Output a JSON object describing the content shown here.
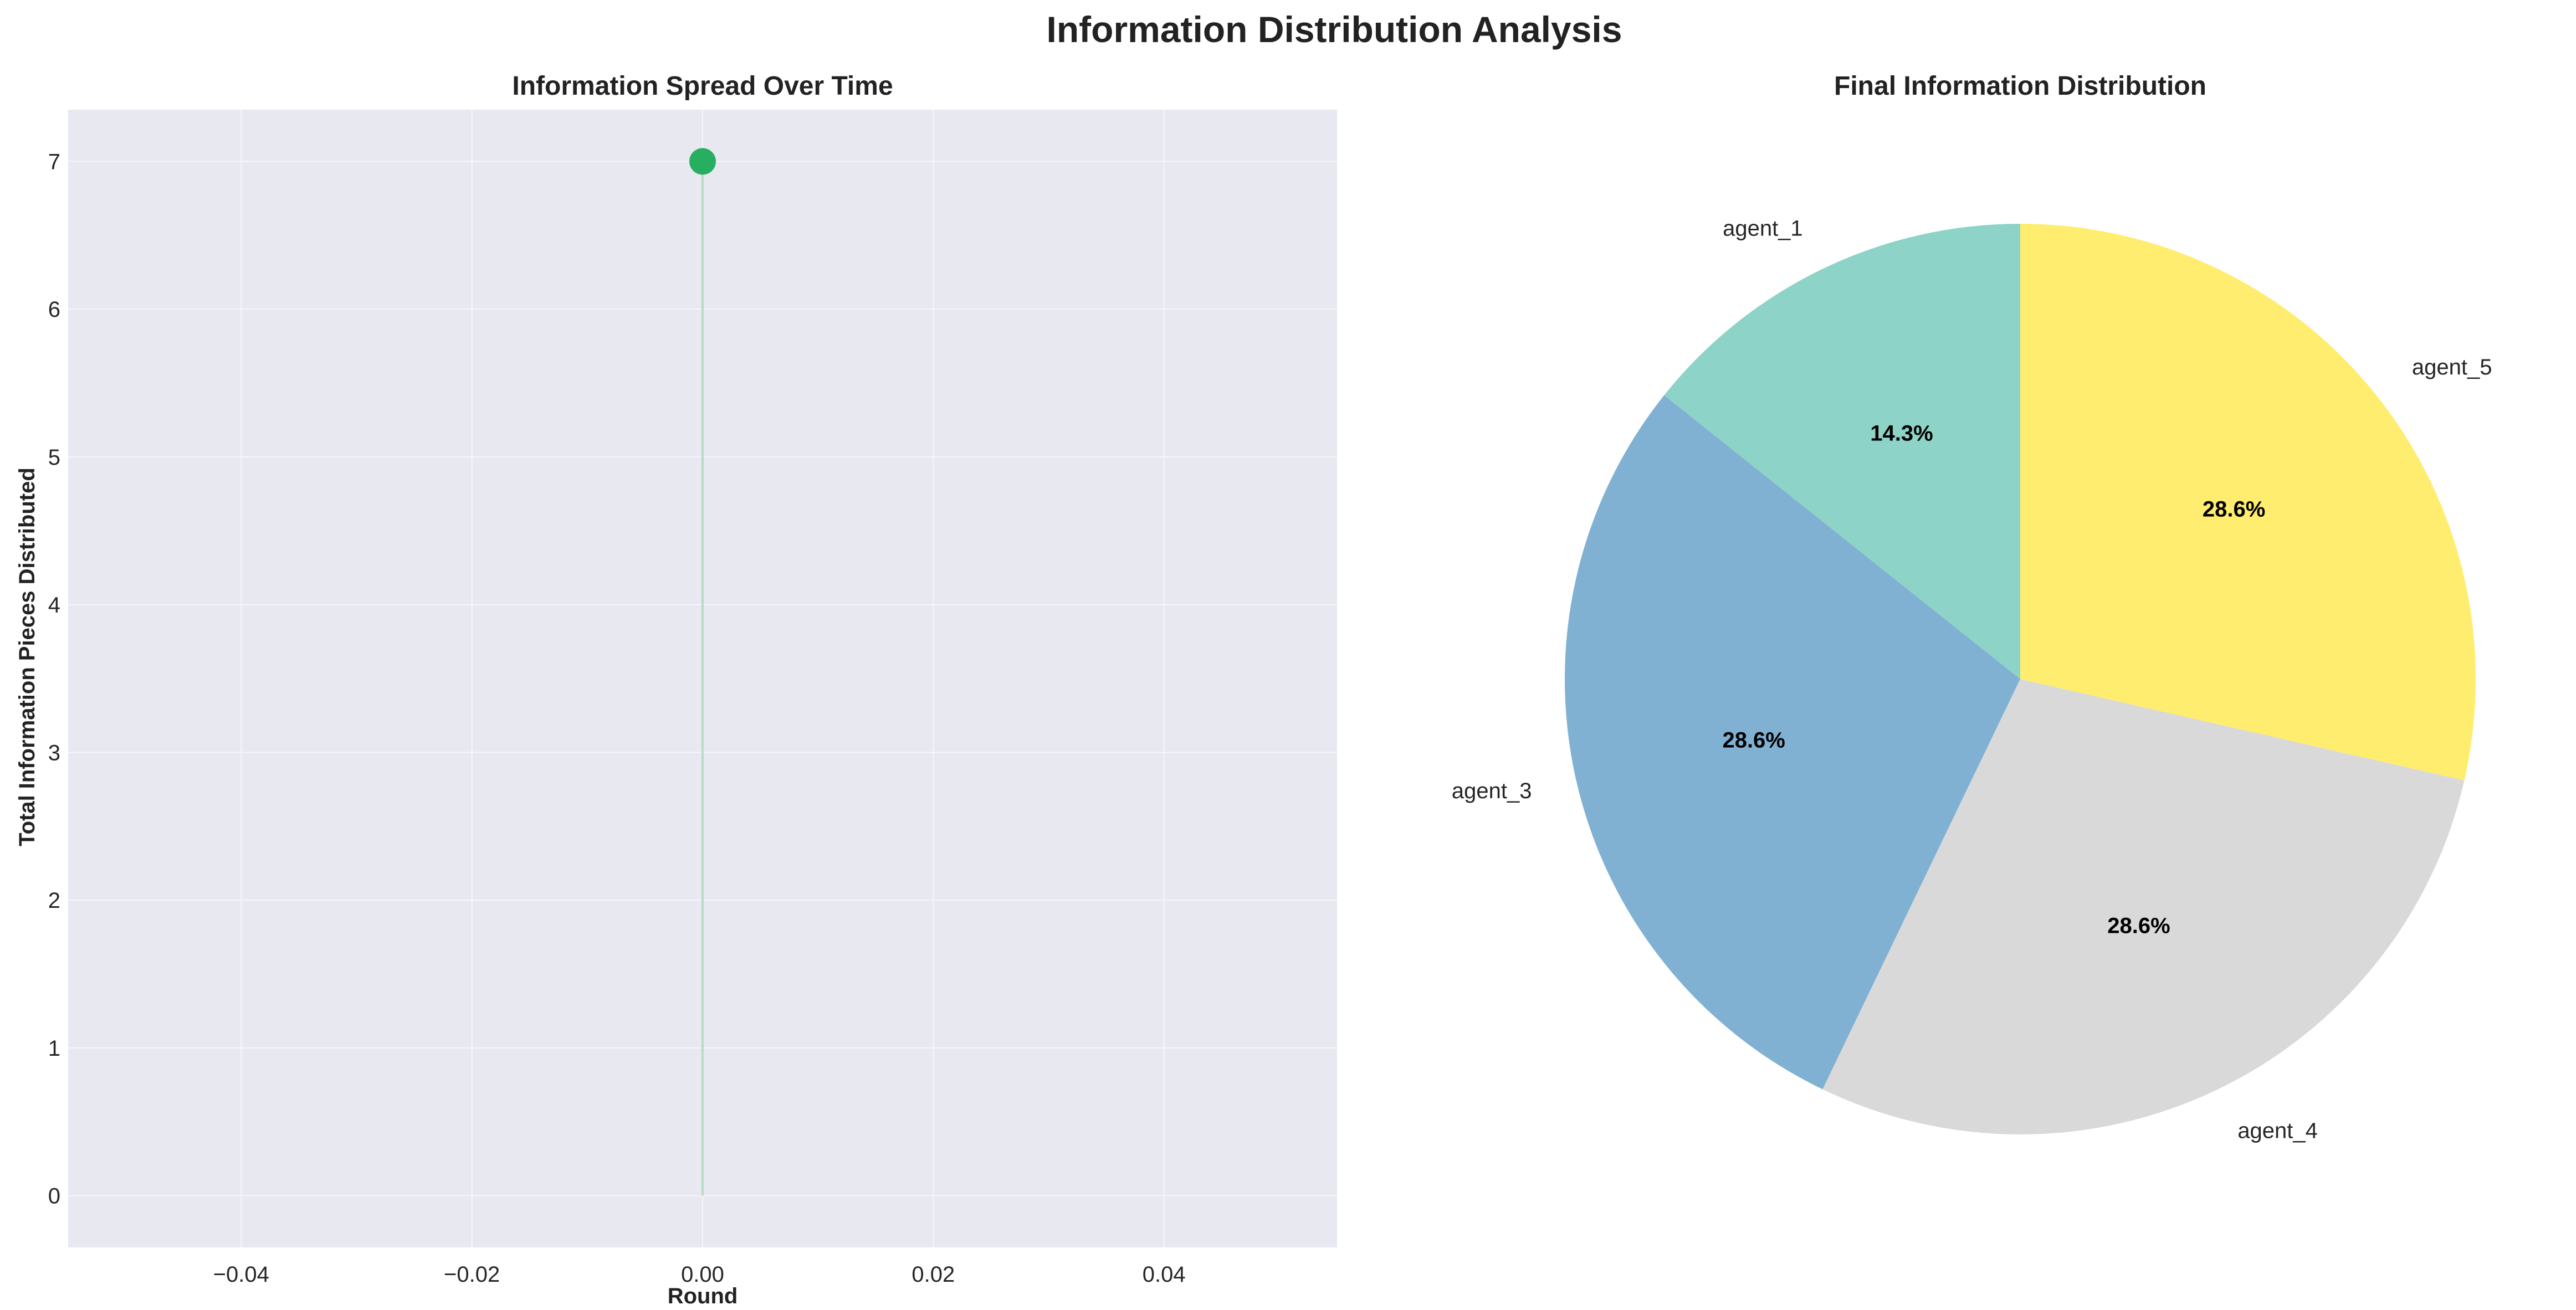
{
  "figure": {
    "title": "Information Distribution Analysis"
  },
  "chart_data": [
    {
      "type": "line",
      "title": "Information Spread Over Time",
      "xlabel": "Round",
      "ylabel": "Total Information Pieces Distributed",
      "xlim": [
        -0.055,
        0.055
      ],
      "ylim": [
        -0.35,
        7.35
      ],
      "x_ticks": [
        -0.04,
        -0.02,
        0.0,
        0.02,
        0.04
      ],
      "x_tick_labels": [
        "−0.04",
        "−0.02",
        "0.00",
        "0.02",
        "0.04"
      ],
      "y_ticks": [
        0,
        1,
        2,
        3,
        4,
        5,
        6,
        7
      ],
      "y_tick_labels": [
        "0",
        "1",
        "2",
        "3",
        "4",
        "5",
        "6",
        "7"
      ],
      "grid": true,
      "series": [
        {
          "x": [
            0
          ],
          "y": [
            7
          ],
          "color": "#27ae60",
          "marker": "circle",
          "fill_to_zero": true
        }
      ],
      "colors": {
        "plot_bg": "#e8e8f0",
        "grid": "#f6f6fa",
        "line": "#27ae60",
        "fill_line": "#b8dcc4"
      }
    },
    {
      "type": "pie",
      "title": "Final Information Distribution",
      "start_angle_deg": 90,
      "direction": "counterclockwise",
      "slices": [
        {
          "label": "agent_1",
          "value": 1,
          "pct_label": "14.3%",
          "color": "#8dd3c7"
        },
        {
          "label": "agent_3",
          "value": 2,
          "pct_label": "28.6%",
          "color": "#80b1d3"
        },
        {
          "label": "agent_4",
          "value": 2,
          "pct_label": "28.6%",
          "color": "#d9d9d9"
        },
        {
          "label": "agent_5",
          "value": 2,
          "pct_label": "28.6%",
          "color": "#ffed6f"
        }
      ]
    }
  ]
}
